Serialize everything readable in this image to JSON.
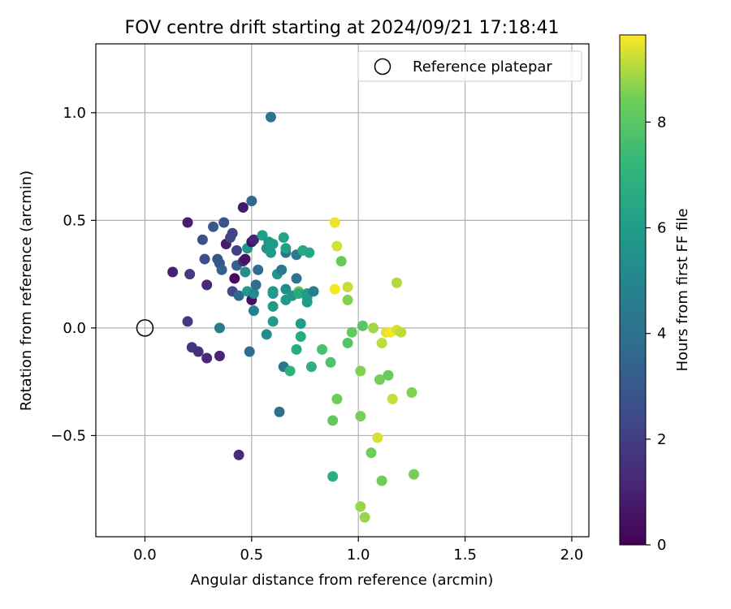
{
  "chart_data": {
    "type": "scatter",
    "title": "FOV centre drift starting at 2024/09/21 17:18:41",
    "xlabel": "Angular distance from reference (arcmin)",
    "ylabel": "Rotation from reference (arcmin)",
    "xlim": [
      -0.23,
      2.08
    ],
    "ylim": [
      -0.97,
      1.32
    ],
    "xticks": [
      0.0,
      0.5,
      1.0,
      1.5,
      2.0
    ],
    "xtick_labels": [
      "0.0",
      "0.5",
      "1.0",
      "1.5",
      "2.0"
    ],
    "yticks": [
      -0.5,
      0.0,
      0.5,
      1.0
    ],
    "ytick_labels": [
      "−0.5",
      "0.0",
      "0.5",
      "1.0"
    ],
    "grid": true,
    "legend": {
      "placement": "top-right",
      "entries": [
        "Reference platepar"
      ]
    },
    "reference_point": {
      "x": 0.0,
      "y": 0.0,
      "label": "Reference platepar"
    },
    "colorbar": {
      "label": "Hours from first FF file",
      "min": 0,
      "max": 9.65,
      "colormap": "viridis",
      "ticks": [
        0,
        2,
        4,
        6,
        8
      ],
      "tick_labels": [
        "0",
        "2",
        "4",
        "6",
        "8"
      ]
    },
    "points": [
      {
        "x": 0.44,
        "y": -0.59,
        "h": 1.3
      },
      {
        "x": 0.2,
        "y": 0.03,
        "h": 1.8
      },
      {
        "x": 0.22,
        "y": -0.09,
        "h": 1.7
      },
      {
        "x": 0.25,
        "y": -0.11,
        "h": 1.5
      },
      {
        "x": 0.29,
        "y": -0.14,
        "h": 1.3
      },
      {
        "x": 0.35,
        "y": -0.13,
        "h": 1.1
      },
      {
        "x": 0.13,
        "y": 0.26,
        "h": 1.0
      },
      {
        "x": 0.2,
        "y": 0.49,
        "h": 0.9
      },
      {
        "x": 0.21,
        "y": 0.25,
        "h": 1.9
      },
      {
        "x": 0.28,
        "y": 0.32,
        "h": 2.6
      },
      {
        "x": 0.27,
        "y": 0.41,
        "h": 2.7
      },
      {
        "x": 0.32,
        "y": 0.47,
        "h": 3.0
      },
      {
        "x": 0.34,
        "y": 0.32,
        "h": 2.9
      },
      {
        "x": 0.35,
        "y": 0.3,
        "h": 2.9
      },
      {
        "x": 0.36,
        "y": 0.27,
        "h": 3.4
      },
      {
        "x": 0.37,
        "y": 0.49,
        "h": 2.8
      },
      {
        "x": 0.29,
        "y": 0.2,
        "h": 1.2
      },
      {
        "x": 0.35,
        "y": 0.0,
        "h": 4.5
      },
      {
        "x": 0.38,
        "y": 0.39,
        "h": 0.8
      },
      {
        "x": 0.4,
        "y": 0.42,
        "h": 2.3
      },
      {
        "x": 0.41,
        "y": 0.44,
        "h": 2.2
      },
      {
        "x": 0.41,
        "y": 0.17,
        "h": 2.4
      },
      {
        "x": 0.42,
        "y": 0.23,
        "h": 0.3
      },
      {
        "x": 0.43,
        "y": 0.29,
        "h": 3.4
      },
      {
        "x": 0.43,
        "y": 0.36,
        "h": 2.1
      },
      {
        "x": 0.44,
        "y": 0.15,
        "h": 3.6
      },
      {
        "x": 0.46,
        "y": 0.31,
        "h": 1.4
      },
      {
        "x": 0.46,
        "y": 0.56,
        "h": 0.7
      },
      {
        "x": 0.47,
        "y": 0.26,
        "h": 5.4
      },
      {
        "x": 0.47,
        "y": 0.32,
        "h": 0.6
      },
      {
        "x": 0.48,
        "y": 0.37,
        "h": 5.7
      },
      {
        "x": 0.48,
        "y": 0.17,
        "h": 5.9
      },
      {
        "x": 0.5,
        "y": 0.4,
        "h": 0.4
      },
      {
        "x": 0.5,
        "y": 0.59,
        "h": 3.6
      },
      {
        "x": 0.5,
        "y": 0.13,
        "h": 0.5
      },
      {
        "x": 0.51,
        "y": 0.16,
        "h": 5.2
      },
      {
        "x": 0.51,
        "y": 0.41,
        "h": 1.1
      },
      {
        "x": 0.51,
        "y": 0.08,
        "h": 4.8
      },
      {
        "x": 0.52,
        "y": 0.2,
        "h": 4.0
      },
      {
        "x": 0.53,
        "y": 0.27,
        "h": 3.8
      },
      {
        "x": 0.49,
        "y": -0.11,
        "h": 3.9
      },
      {
        "x": 0.55,
        "y": 0.43,
        "h": 6.1
      },
      {
        "x": 0.57,
        "y": 0.37,
        "h": 5.6
      },
      {
        "x": 0.57,
        "y": -0.03,
        "h": 5.3
      },
      {
        "x": 0.58,
        "y": 0.4,
        "h": 5.8
      },
      {
        "x": 0.59,
        "y": 0.35,
        "h": 5.9
      },
      {
        "x": 0.59,
        "y": 0.98,
        "h": 4.2
      },
      {
        "x": 0.6,
        "y": 0.17,
        "h": 5.7
      },
      {
        "x": 0.6,
        "y": 0.16,
        "h": 5.8
      },
      {
        "x": 0.6,
        "y": 0.1,
        "h": 5.9
      },
      {
        "x": 0.6,
        "y": 0.03,
        "h": 5.9
      },
      {
        "x": 0.6,
        "y": 0.39,
        "h": 6.0
      },
      {
        "x": 0.62,
        "y": 0.25,
        "h": 5.8
      },
      {
        "x": 0.63,
        "y": -0.39,
        "h": 4.0
      },
      {
        "x": 0.64,
        "y": 0.27,
        "h": 4.3
      },
      {
        "x": 0.65,
        "y": -0.18,
        "h": 4.3
      },
      {
        "x": 0.65,
        "y": 0.42,
        "h": 6.3
      },
      {
        "x": 0.66,
        "y": 0.35,
        "h": 4.2
      },
      {
        "x": 0.66,
        "y": 0.37,
        "h": 6.2
      },
      {
        "x": 0.66,
        "y": 0.13,
        "h": 5.9
      },
      {
        "x": 0.66,
        "y": 0.18,
        "h": 5.4
      },
      {
        "x": 0.68,
        "y": -0.2,
        "h": 7.0
      },
      {
        "x": 0.69,
        "y": 0.15,
        "h": 5.6
      },
      {
        "x": 0.71,
        "y": 0.23,
        "h": 4.2
      },
      {
        "x": 0.71,
        "y": 0.34,
        "h": 4.4
      },
      {
        "x": 0.71,
        "y": -0.1,
        "h": 6.7
      },
      {
        "x": 0.72,
        "y": 0.17,
        "h": 8.3
      },
      {
        "x": 0.72,
        "y": 0.16,
        "h": 6.6
      },
      {
        "x": 0.73,
        "y": 0.02,
        "h": 6.0
      },
      {
        "x": 0.73,
        "y": -0.04,
        "h": 6.6
      },
      {
        "x": 0.74,
        "y": 0.36,
        "h": 6.5
      },
      {
        "x": 0.76,
        "y": 0.14,
        "h": 6.3
      },
      {
        "x": 0.76,
        "y": 0.16,
        "h": 6.0
      },
      {
        "x": 0.76,
        "y": 0.12,
        "h": 5.9
      },
      {
        "x": 0.77,
        "y": 0.35,
        "h": 6.4
      },
      {
        "x": 0.78,
        "y": -0.18,
        "h": 6.9
      },
      {
        "x": 0.79,
        "y": 0.17,
        "h": 4.6
      },
      {
        "x": 0.83,
        "y": -0.1,
        "h": 7.7
      },
      {
        "x": 0.87,
        "y": -0.16,
        "h": 7.8
      },
      {
        "x": 0.88,
        "y": -0.69,
        "h": 6.8
      },
      {
        "x": 0.88,
        "y": -0.43,
        "h": 8.2
      },
      {
        "x": 0.89,
        "y": 0.18,
        "h": 9.6
      },
      {
        "x": 0.89,
        "y": 0.49,
        "h": 9.5
      },
      {
        "x": 0.9,
        "y": -0.33,
        "h": 8.4
      },
      {
        "x": 0.9,
        "y": 0.38,
        "h": 9.3
      },
      {
        "x": 0.92,
        "y": 0.31,
        "h": 8.3
      },
      {
        "x": 0.95,
        "y": 0.19,
        "h": 9.2
      },
      {
        "x": 0.95,
        "y": 0.13,
        "h": 8.6
      },
      {
        "x": 0.95,
        "y": -0.07,
        "h": 7.9
      },
      {
        "x": 0.97,
        "y": -0.02,
        "h": 8.2
      },
      {
        "x": 1.01,
        "y": -0.41,
        "h": 8.5
      },
      {
        "x": 1.01,
        "y": -0.2,
        "h": 8.6
      },
      {
        "x": 1.01,
        "y": -0.83,
        "h": 8.8
      },
      {
        "x": 1.02,
        "y": 0.01,
        "h": 8.0
      },
      {
        "x": 1.03,
        "y": -0.88,
        "h": 8.8
      },
      {
        "x": 1.06,
        "y": -0.58,
        "h": 8.4
      },
      {
        "x": 1.07,
        "y": 0.0,
        "h": 8.9
      },
      {
        "x": 1.09,
        "y": -0.51,
        "h": 9.3
      },
      {
        "x": 1.1,
        "y": -0.24,
        "h": 8.5
      },
      {
        "x": 1.11,
        "y": -0.71,
        "h": 8.4
      },
      {
        "x": 1.11,
        "y": -0.07,
        "h": 9.1
      },
      {
        "x": 1.13,
        "y": -0.02,
        "h": 9.4
      },
      {
        "x": 1.14,
        "y": -0.22,
        "h": 8.3
      },
      {
        "x": 1.15,
        "y": -0.02,
        "h": 9.6
      },
      {
        "x": 1.16,
        "y": -0.33,
        "h": 9.2
      },
      {
        "x": 1.18,
        "y": 0.21,
        "h": 9.0
      },
      {
        "x": 1.18,
        "y": -0.01,
        "h": 9.3
      },
      {
        "x": 1.2,
        "y": -0.02,
        "h": 9.1
      },
      {
        "x": 1.25,
        "y": -0.3,
        "h": 8.6
      },
      {
        "x": 1.26,
        "y": -0.68,
        "h": 8.5
      }
    ]
  }
}
